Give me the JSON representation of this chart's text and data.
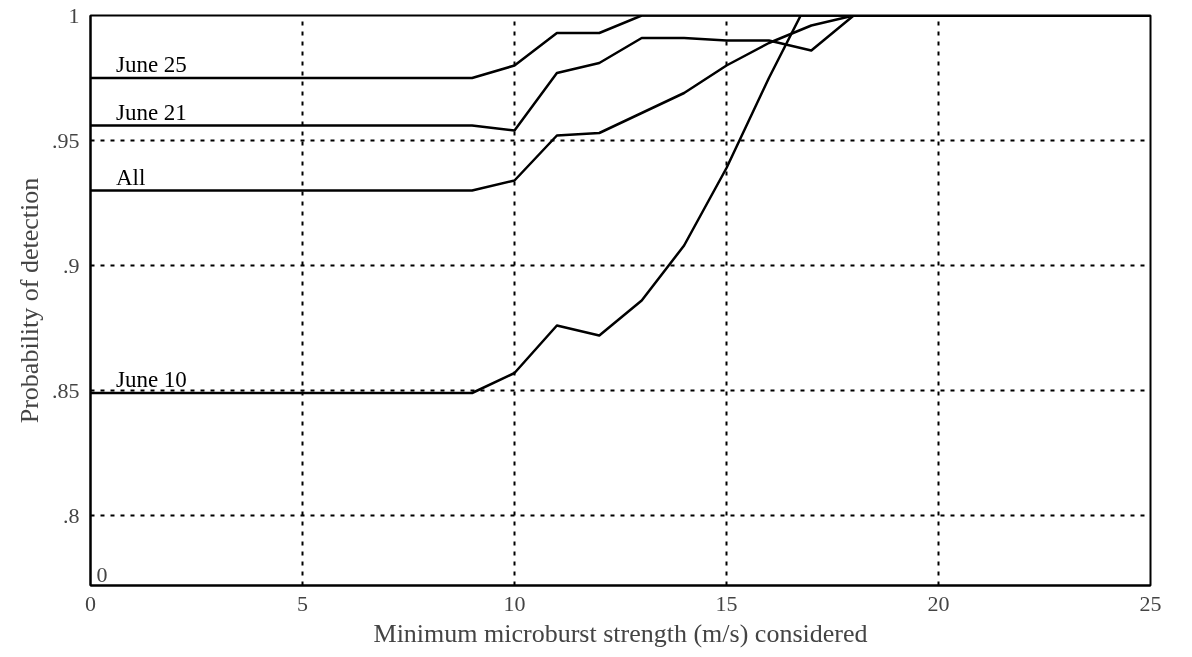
{
  "chart_data": {
    "type": "line",
    "xlabel": "Minimum microburst strength (m/s) considered",
    "ylabel": "Probability of detection",
    "xlim": [
      0,
      25
    ],
    "xticks": [
      0,
      5,
      10,
      15,
      20,
      25
    ],
    "ylim": [
      0.772,
      1
    ],
    "yticks": [
      {
        "value": 0.8,
        "label": ".8"
      },
      {
        "value": 0.85,
        "label": ".85"
      },
      {
        "value": 0.9,
        "label": ".9"
      },
      {
        "value": 0.95,
        "label": ".95"
      },
      1
    ],
    "annotations": [
      "0"
    ],
    "grid": true,
    "line_style": "solid",
    "marker": "none",
    "series": [
      {
        "name": "June 25",
        "color": "#000000",
        "x": [
          0,
          9,
          10,
          11,
          12,
          13,
          25
        ],
        "values": [
          0.975,
          0.975,
          0.98,
          0.993,
          0.993,
          1.0,
          1.0
        ]
      },
      {
        "name": "June 21",
        "color": "#000000",
        "x": [
          0,
          9,
          10,
          11,
          12,
          13,
          14,
          15,
          16,
          17,
          18,
          25
        ],
        "values": [
          0.956,
          0.956,
          0.954,
          0.977,
          0.981,
          0.991,
          0.991,
          0.99,
          0.99,
          0.986,
          1.0,
          1.0
        ]
      },
      {
        "name": "All",
        "color": "#000000",
        "x": [
          0,
          9,
          10,
          11,
          12,
          13,
          14,
          15,
          16,
          17,
          18,
          25
        ],
        "values": [
          0.93,
          0.93,
          0.934,
          0.952,
          0.953,
          0.961,
          0.969,
          0.98,
          0.989,
          0.996,
          1.0,
          1.0
        ]
      },
      {
        "name": "June 10",
        "color": "#000000",
        "x": [
          0,
          9,
          10,
          11,
          12,
          13,
          14,
          15,
          16,
          16.75,
          25
        ],
        "values": [
          0.849,
          0.849,
          0.857,
          0.876,
          0.872,
          0.886,
          0.908,
          0.939,
          0.975,
          1.0,
          1.0
        ]
      }
    ]
  }
}
